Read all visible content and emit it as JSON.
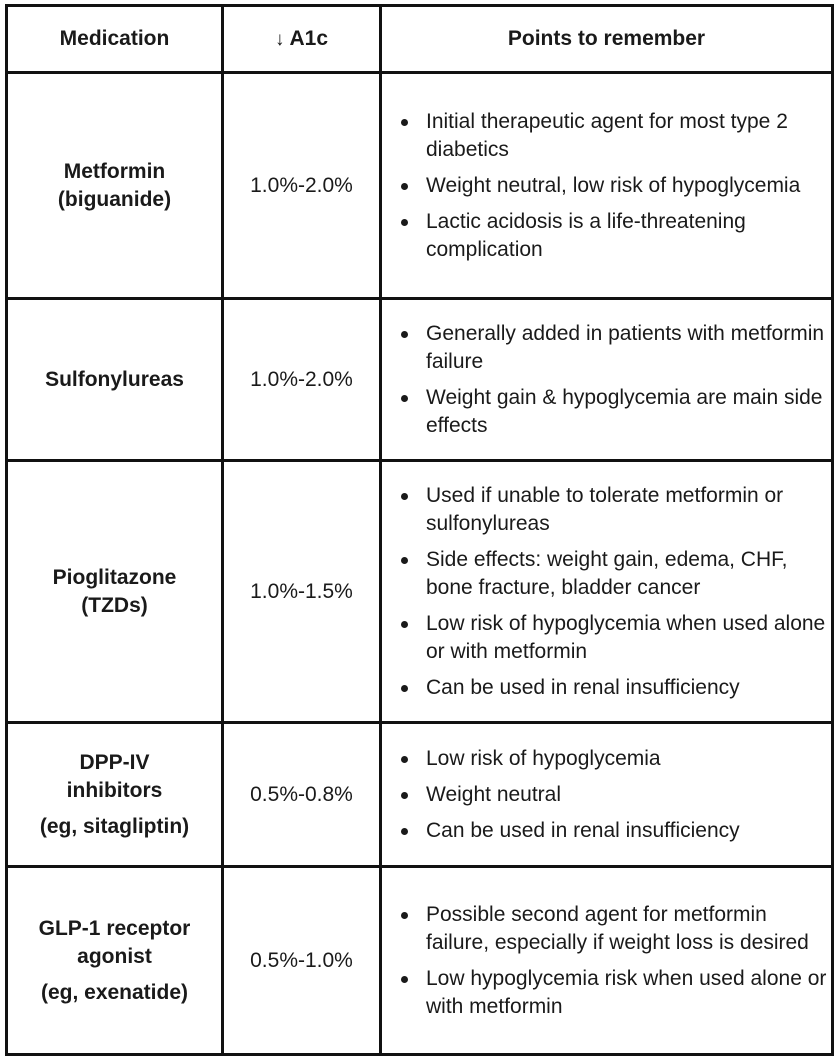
{
  "headers": {
    "medication": "Medication",
    "a1c_arrow": "↓",
    "a1c": "A1c",
    "points": "Points to remember"
  },
  "rows": [
    {
      "name_lines": [
        "Metformin",
        "(biguanide)"
      ],
      "note": "",
      "a1c": "1.0%-2.0%",
      "points": [
        "Initial therapeutic agent for most type 2 diabetics",
        "Weight neutral, low risk of hypoglycemia",
        "Lactic acidosis is a life-threatening complication"
      ]
    },
    {
      "name_lines": [
        "Sulfonylureas"
      ],
      "note": "",
      "a1c": "1.0%-2.0%",
      "points": [
        "Generally added in patients with metformin failure",
        "Weight gain & hypoglycemia are main side effects"
      ]
    },
    {
      "name_lines": [
        "Pioglitazone",
        "(TZDs)"
      ],
      "note": "",
      "a1c": "1.0%-1.5%",
      "points": [
        "Used if unable to tolerate metformin or sulfonylureas",
        "Side effects: weight gain, edema, CHF, bone fracture, bladder cancer",
        "Low risk of hypoglycemia when used alone or with metformin",
        "Can be used in renal insufficiency"
      ]
    },
    {
      "name_lines": [
        "DPP-IV",
        "inhibitors"
      ],
      "note": "(eg, sitagliptin)",
      "a1c": "0.5%-0.8%",
      "points": [
        "Low risk of hypoglycemia",
        "Weight neutral",
        "Can be used in renal insufficiency"
      ]
    },
    {
      "name_lines": [
        "GLP-1 receptor",
        "agonist"
      ],
      "note": "(eg, exenatide)",
      "a1c": "0.5%-1.0%",
      "points": [
        "Possible second agent for metformin failure, especially if weight loss is desired",
        "Low hypoglycemia risk when used alone or with metformin"
      ]
    }
  ]
}
